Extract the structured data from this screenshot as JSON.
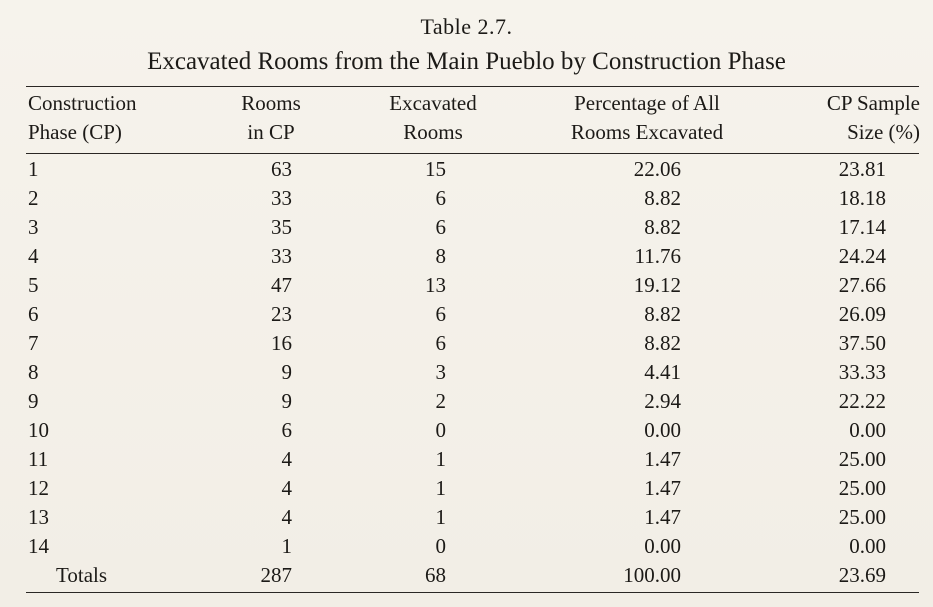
{
  "table": {
    "label": "Table 2.7.",
    "title": "Excavated Rooms from the Main Pueblo by Construction Phase",
    "headers": {
      "phase": [
        "Construction",
        "Phase (CP)"
      ],
      "rooms": [
        "Rooms",
        "in CP"
      ],
      "excavated": [
        "Excavated",
        "Rooms"
      ],
      "percentage": [
        "Percentage of All",
        "Rooms Excavated"
      ],
      "sample": [
        "CP Sample",
        "Size (%)"
      ]
    },
    "rows": [
      {
        "phase": "1",
        "rooms": "63",
        "excavated": "15",
        "percentage": "22.06",
        "sample": "23.81"
      },
      {
        "phase": "2",
        "rooms": "33",
        "excavated": "6",
        "percentage": "8.82",
        "sample": "18.18"
      },
      {
        "phase": "3",
        "rooms": "35",
        "excavated": "6",
        "percentage": "8.82",
        "sample": "17.14"
      },
      {
        "phase": "4",
        "rooms": "33",
        "excavated": "8",
        "percentage": "11.76",
        "sample": "24.24"
      },
      {
        "phase": "5",
        "rooms": "47",
        "excavated": "13",
        "percentage": "19.12",
        "sample": "27.66"
      },
      {
        "phase": "6",
        "rooms": "23",
        "excavated": "6",
        "percentage": "8.82",
        "sample": "26.09"
      },
      {
        "phase": "7",
        "rooms": "16",
        "excavated": "6",
        "percentage": "8.82",
        "sample": "37.50"
      },
      {
        "phase": "8",
        "rooms": "9",
        "excavated": "3",
        "percentage": "4.41",
        "sample": "33.33"
      },
      {
        "phase": "9",
        "rooms": "9",
        "excavated": "2",
        "percentage": "2.94",
        "sample": "22.22"
      },
      {
        "phase": "10",
        "rooms": "6",
        "excavated": "0",
        "percentage": "0.00",
        "sample": "0.00"
      },
      {
        "phase": "11",
        "rooms": "4",
        "excavated": "1",
        "percentage": "1.47",
        "sample": "25.00"
      },
      {
        "phase": "12",
        "rooms": "4",
        "excavated": "1",
        "percentage": "1.47",
        "sample": "25.00"
      },
      {
        "phase": "13",
        "rooms": "4",
        "excavated": "1",
        "percentage": "1.47",
        "sample": "25.00"
      },
      {
        "phase": "14",
        "rooms": "1",
        "excavated": "0",
        "percentage": "0.00",
        "sample": "0.00"
      }
    ],
    "totals": {
      "phase": "Totals",
      "rooms": "287",
      "excavated": "68",
      "percentage": "100.00",
      "sample": "23.69"
    }
  }
}
